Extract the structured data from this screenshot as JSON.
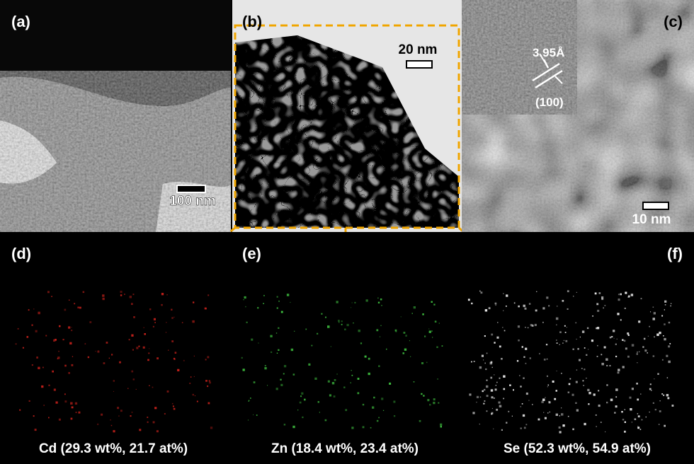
{
  "panels": [
    {
      "label": "(a)",
      "scale_bar": "100 nm"
    },
    {
      "label": "(b)",
      "scale_bar": "20 nm"
    },
    {
      "label": "(c)",
      "scale_bar": "10 nm",
      "inset": {
        "spacing": "3.95Å",
        "plane": "(100)"
      }
    },
    {
      "label": "(d)",
      "caption": "Cd (29.3 wt%, 21.7 at%)"
    },
    {
      "label": "(e)",
      "caption": "Zn (18.4 wt%, 23.4 at%)"
    },
    {
      "label": "(f)",
      "caption": "Se (52.3 wt%, 54.9 at%)"
    }
  ]
}
